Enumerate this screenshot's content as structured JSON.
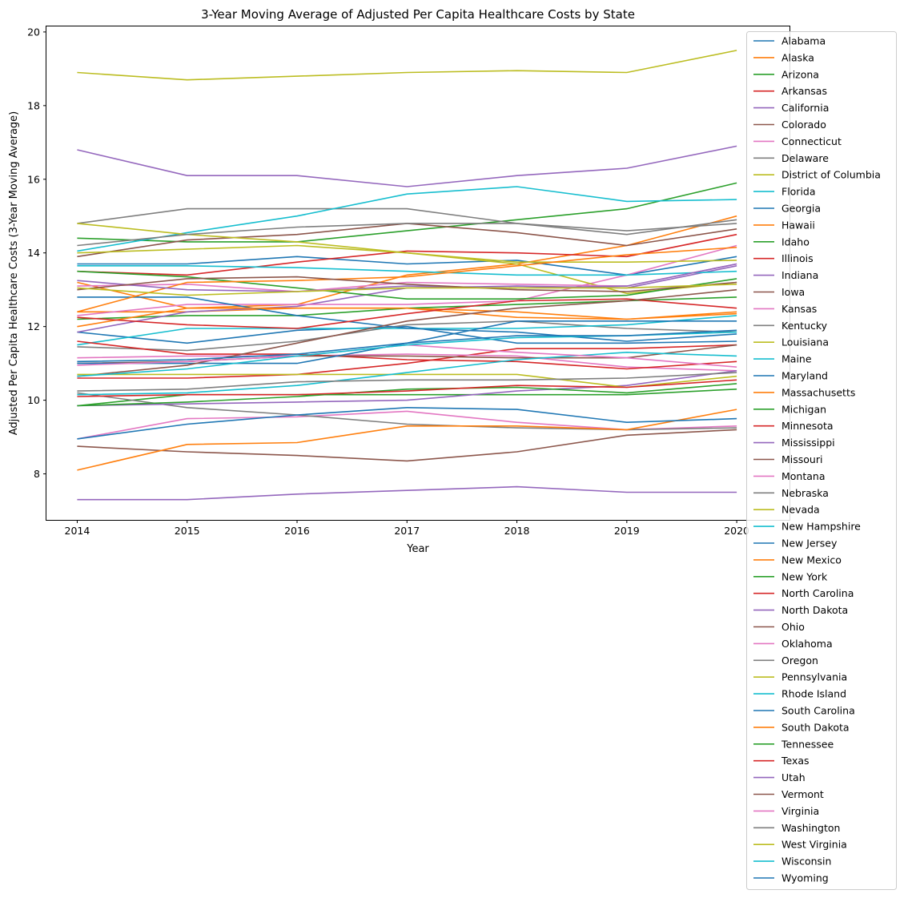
{
  "chart_data": {
    "type": "line",
    "title": "3-Year Moving Average of Adjusted Per Capita Healthcare Costs by State",
    "xlabel": "Year",
    "ylabel": "Adjusted Per Capita Healthcare Costs (3-Year Moving Average)",
    "x": [
      2014,
      2015,
      2016,
      2017,
      2018,
      2019,
      2020
    ],
    "x_ticks": [
      "2014",
      "2015",
      "2016",
      "2017",
      "2018",
      "2019",
      "2020"
    ],
    "y_ticks": [
      "8",
      "10",
      "12",
      "14",
      "16",
      "18",
      "20"
    ],
    "xlim": [
      2013.72,
      2020.48
    ],
    "ylim": [
      6.75,
      20.15
    ],
    "grid": false,
    "legend_position": "right",
    "colors": [
      "#1f77b4",
      "#ff7f0e",
      "#2ca02c",
      "#d62728",
      "#9467bd",
      "#8c564b",
      "#e377c2",
      "#7f7f7f",
      "#bcbd22",
      "#17becf"
    ],
    "series": [
      {
        "name": "Alabama",
        "values": [
          13.7,
          13.7,
          13.9,
          13.7,
          13.8,
          13.4,
          13.9
        ]
      },
      {
        "name": "Alaska",
        "values": [
          13.2,
          12.5,
          12.6,
          13.4,
          13.7,
          14.2,
          15.0
        ]
      },
      {
        "name": "Arizona",
        "values": [
          14.4,
          14.3,
          14.3,
          14.6,
          14.9,
          15.2,
          15.9
        ]
      },
      {
        "name": "Arkansas",
        "values": [
          10.6,
          10.6,
          10.7,
          11.0,
          11.4,
          11.4,
          11.5
        ]
      },
      {
        "name": "California",
        "values": [
          16.8,
          16.1,
          16.1,
          15.8,
          16.1,
          16.3,
          16.9
        ]
      },
      {
        "name": "Colorado",
        "values": [
          8.75,
          8.6,
          8.5,
          8.35,
          8.6,
          9.05,
          9.2
        ]
      },
      {
        "name": "Connecticut",
        "values": [
          11.15,
          11.2,
          11.2,
          11.25,
          11.2,
          10.9,
          10.8
        ]
      },
      {
        "name": "Delaware",
        "values": [
          14.8,
          15.2,
          15.2,
          15.2,
          14.8,
          14.6,
          14.8
        ]
      },
      {
        "name": "District of Columbia",
        "values": [
          18.9,
          18.7,
          18.8,
          18.9,
          18.95,
          18.9,
          19.5
        ]
      },
      {
        "name": "Florida",
        "values": [
          14.05,
          14.55,
          15.0,
          15.6,
          15.8,
          15.4,
          15.45
        ]
      },
      {
        "name": "Georgia",
        "values": [
          11.85,
          11.55,
          11.9,
          12.0,
          11.55,
          11.55,
          11.6
        ]
      },
      {
        "name": "Hawaii",
        "values": [
          12.4,
          12.4,
          12.5,
          12.5,
          12.4,
          12.2,
          12.4
        ]
      },
      {
        "name": "Idaho",
        "values": [
          12.2,
          12.3,
          12.3,
          12.5,
          12.6,
          12.7,
          12.8
        ]
      },
      {
        "name": "Illinois",
        "values": [
          13.5,
          13.4,
          13.75,
          14.05,
          14.0,
          13.9,
          14.5
        ]
      },
      {
        "name": "Indiana",
        "values": [
          11.85,
          12.4,
          12.55,
          13.05,
          13.1,
          13.05,
          13.65
        ]
      },
      {
        "name": "Iowa",
        "values": [
          13.9,
          14.35,
          14.5,
          14.8,
          14.55,
          14.2,
          14.65
        ]
      },
      {
        "name": "Kansas",
        "values": [
          12.3,
          12.6,
          12.6,
          12.6,
          12.7,
          13.4,
          14.2
        ]
      },
      {
        "name": "Kentucky",
        "values": [
          11.45,
          11.35,
          11.6,
          12.05,
          12.15,
          11.95,
          11.85
        ]
      },
      {
        "name": "Louisiana",
        "values": [
          14.8,
          14.5,
          14.3,
          14.0,
          13.7,
          12.9,
          13.2
        ]
      },
      {
        "name": "Maine",
        "values": [
          11.5,
          11.95,
          11.95,
          11.95,
          11.95,
          12.05,
          12.3
        ]
      },
      {
        "name": "Maryland",
        "values": [
          12.8,
          12.8,
          12.3,
          11.95,
          11.85,
          11.6,
          11.8
        ]
      },
      {
        "name": "Massachusetts",
        "values": [
          12.0,
          12.5,
          12.5,
          12.5,
          12.25,
          12.2,
          12.35
        ]
      },
      {
        "name": "Michigan",
        "values": [
          9.85,
          10.15,
          10.15,
          10.15,
          10.15,
          10.15,
          10.3
        ]
      },
      {
        "name": "Minnesota",
        "values": [
          11.6,
          11.25,
          11.25,
          11.1,
          11.05,
          10.85,
          11.05
        ]
      },
      {
        "name": "Mississippi",
        "values": [
          7.3,
          7.3,
          7.45,
          7.55,
          7.65,
          7.5,
          7.5
        ]
      },
      {
        "name": "Missouri",
        "values": [
          11.0,
          11.05,
          11.2,
          11.2,
          11.15,
          11.15,
          11.5
        ]
      },
      {
        "name": "Montana",
        "values": [
          8.95,
          9.5,
          9.55,
          9.7,
          9.4,
          9.2,
          9.3
        ]
      },
      {
        "name": "Nebraska",
        "values": [
          10.2,
          9.8,
          9.6,
          9.35,
          9.25,
          9.2,
          9.25
        ]
      },
      {
        "name": "Nevada",
        "values": [
          14.0,
          14.1,
          14.2,
          14.0,
          13.75,
          13.75,
          13.8
        ]
      },
      {
        "name": "New Hampshire",
        "values": [
          13.65,
          13.65,
          13.6,
          13.5,
          13.4,
          13.4,
          13.5
        ]
      },
      {
        "name": "New Jersey",
        "values": [
          11.0,
          11.0,
          11.0,
          11.55,
          12.15,
          12.15,
          12.15
        ]
      },
      {
        "name": "New Mexico",
        "values": [
          8.1,
          8.8,
          8.85,
          9.3,
          9.3,
          9.2,
          9.75
        ]
      },
      {
        "name": "New York",
        "values": [
          13.5,
          13.35,
          13.05,
          12.75,
          12.75,
          12.85,
          13.3
        ]
      },
      {
        "name": "North Carolina",
        "values": [
          12.25,
          12.05,
          11.95,
          12.35,
          12.7,
          12.75,
          12.5
        ]
      },
      {
        "name": "North Dakota",
        "values": [
          9.85,
          9.9,
          9.95,
          10.0,
          10.25,
          10.4,
          10.8
        ]
      },
      {
        "name": "Ohio",
        "values": [
          10.65,
          10.95,
          11.55,
          12.15,
          12.5,
          12.7,
          13.0
        ]
      },
      {
        "name": "Oklahoma",
        "values": [
          13.1,
          13.15,
          12.95,
          13.2,
          13.15,
          13.1,
          13.7
        ]
      },
      {
        "name": "Oregon",
        "values": [
          14.2,
          14.5,
          14.7,
          14.8,
          14.8,
          14.5,
          14.9
        ]
      },
      {
        "name": "Pennsylvania",
        "values": [
          10.7,
          10.7,
          10.7,
          10.7,
          10.7,
          10.35,
          10.65
        ]
      },
      {
        "name": "Rhode Island",
        "values": [
          10.15,
          10.2,
          10.4,
          10.75,
          11.1,
          11.3,
          11.2
        ]
      },
      {
        "name": "South Carolina",
        "values": [
          8.95,
          9.35,
          9.6,
          9.8,
          9.75,
          9.4,
          9.5
        ]
      },
      {
        "name": "South Dakota",
        "values": [
          12.4,
          13.2,
          13.25,
          13.35,
          13.65,
          13.95,
          14.15
        ]
      },
      {
        "name": "Tennessee",
        "values": [
          9.85,
          9.95,
          10.1,
          10.3,
          10.35,
          10.2,
          10.45
        ]
      },
      {
        "name": "Texas",
        "values": [
          10.1,
          10.15,
          10.15,
          10.25,
          10.4,
          10.35,
          10.55
        ]
      },
      {
        "name": "Utah",
        "values": [
          13.25,
          13.0,
          12.95,
          13.1,
          13.05,
          13.1,
          13.7
        ]
      },
      {
        "name": "Vermont",
        "values": [
          13.0,
          13.3,
          13.35,
          13.15,
          13.0,
          12.95,
          13.2
        ]
      },
      {
        "name": "Virginia",
        "values": [
          10.95,
          11.05,
          11.2,
          11.5,
          11.3,
          11.15,
          10.9
        ]
      },
      {
        "name": "Washington",
        "values": [
          10.25,
          10.3,
          10.5,
          10.55,
          10.55,
          10.6,
          10.75
        ]
      },
      {
        "name": "West Virginia",
        "values": [
          13.05,
          12.85,
          12.95,
          13.05,
          13.05,
          13.05,
          13.15
        ]
      },
      {
        "name": "Wisconsin",
        "values": [
          10.65,
          10.85,
          11.2,
          11.5,
          11.7,
          11.75,
          11.85
        ]
      },
      {
        "name": "Wyoming",
        "values": [
          11.05,
          11.1,
          11.25,
          11.55,
          11.75,
          11.75,
          11.9
        ]
      }
    ]
  }
}
